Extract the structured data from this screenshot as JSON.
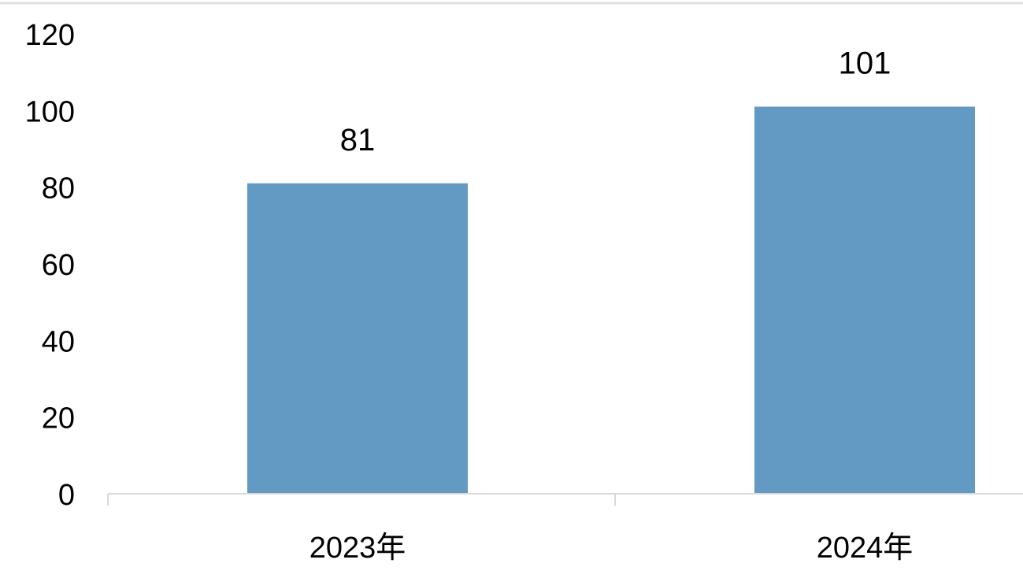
{
  "chart_data": {
    "type": "bar",
    "title": "",
    "xlabel": "",
    "ylabel": "",
    "categories": [
      "2023年",
      "2024年"
    ],
    "values": [
      81,
      101
    ],
    "data_labels": [
      "81",
      "101"
    ],
    "ylim": [
      0,
      120
    ],
    "yticks": [
      0,
      20,
      40,
      60,
      80,
      100,
      120
    ],
    "ytick_labels": [
      "0",
      "20",
      "40",
      "60",
      "80",
      "100",
      "120"
    ],
    "grid": false,
    "legend": "none",
    "colors": {
      "bar": "#629AC3",
      "axis": "#D9D9D9",
      "border": "#E0E0E0"
    }
  }
}
